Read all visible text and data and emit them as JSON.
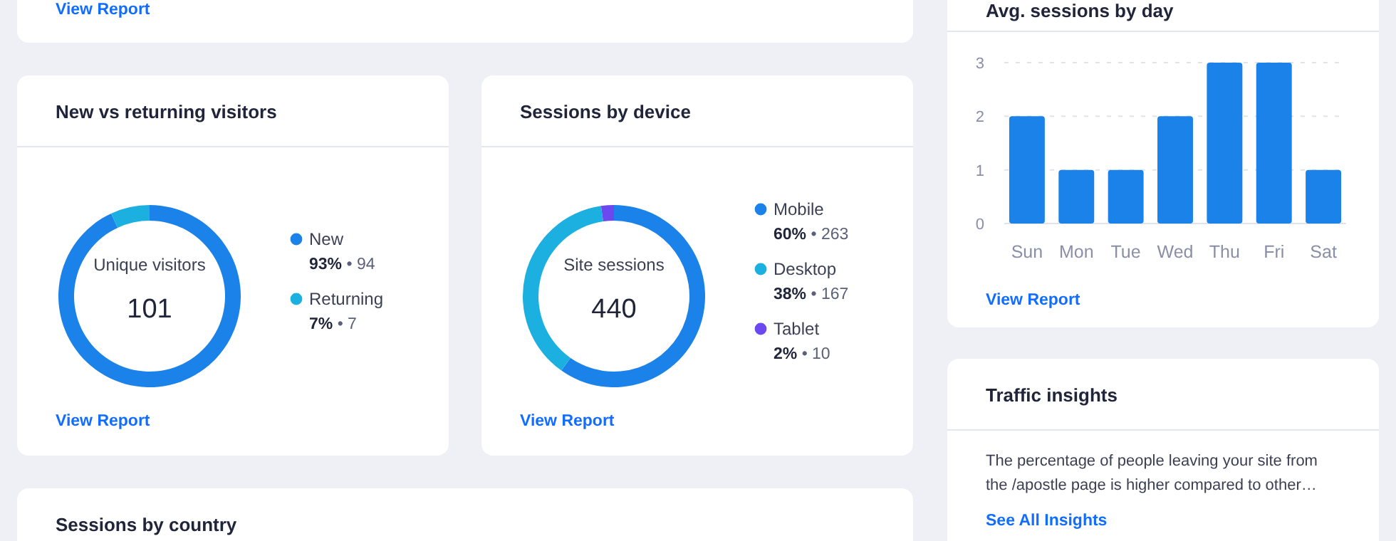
{
  "chart_data": [
    {
      "type": "other",
      "annotations": [
        "View Report"
      ]
    },
    {
      "type": "bar",
      "title": "Avg. sessions by day",
      "categories": [
        "Sun",
        "Mon",
        "Tue",
        "Wed",
        "Thu",
        "Fri",
        "Sat"
      ],
      "values": [
        2,
        1,
        1,
        2,
        3,
        3,
        1
      ],
      "color": "#1a82e8",
      "ylim": [
        0,
        3
      ],
      "yticks": [
        0,
        1,
        2,
        3
      ],
      "grid": "y",
      "annotations": [
        "View Report"
      ]
    },
    {
      "type": "donut",
      "title": "New vs returning visitors",
      "categories": [
        "New",
        "Returning"
      ],
      "values": [
        94,
        7
      ],
      "colors": [
        "#1a82e8",
        "#1cb0e0"
      ],
      "value_labels": [
        "93% • 94",
        "7% • 7"
      ],
      "legend": "right",
      "annotations": [
        "Unique visitors",
        "101",
        "View Report"
      ]
    },
    {
      "type": "donut",
      "title": "Sessions by device",
      "categories": [
        "Mobile",
        "Desktop",
        "Tablet"
      ],
      "values": [
        263,
        167,
        10
      ],
      "colors": [
        "#1a82e8",
        "#1cb0e0",
        "#6b48f0"
      ],
      "value_labels": [
        "60% • 263",
        "38% • 167",
        "2% • 10"
      ],
      "legend": "right",
      "annotations": [
        "Site sessions",
        "440",
        "View Report"
      ]
    },
    {
      "type": "other",
      "title": "Traffic insights",
      "annotations": [
        "The percentage of people leaving your site from the /apostle page is higher compared to other…",
        "See All Insights"
      ]
    },
    {
      "type": "other",
      "title": "Sessions by country"
    }
  ]
}
